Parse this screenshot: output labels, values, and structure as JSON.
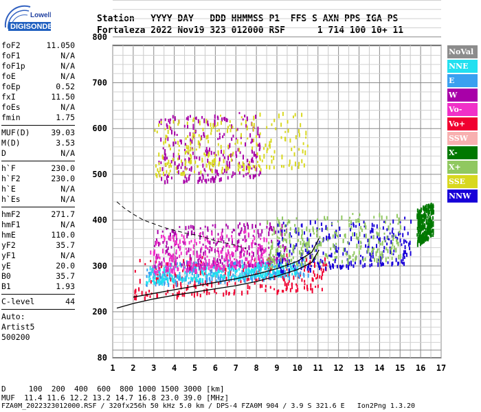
{
  "logo": {
    "line1": "Lowell",
    "line2": "DIGISONDE"
  },
  "header": {
    "line1": "Station   YYYY DAY   DDD HHMMSS P1  FFS S AXN PPS IGA PS",
    "line2": "Fortaleza 2022 Nov19 323 012000 RSF      1 714 100 10+ 11"
  },
  "params": [
    {
      "name": "foF2",
      "value": "11.050"
    },
    {
      "name": "foF1",
      "value": "N/A"
    },
    {
      "name": "foF1p",
      "value": "N/A"
    },
    {
      "name": "foE",
      "value": "N/A"
    },
    {
      "name": "foEp",
      "value": "0.52"
    },
    {
      "name": "fxI",
      "value": "11.50"
    },
    {
      "name": "foEs",
      "value": "N/A"
    },
    {
      "name": "fmin",
      "value": "1.75"
    },
    {
      "sep": true
    },
    {
      "name": "MUF(D)",
      "value": "39.03"
    },
    {
      "name": "M(D)",
      "value": "3.53"
    },
    {
      "name": "D",
      "value": "N/A"
    },
    {
      "sep": true
    },
    {
      "name": "h`F",
      "value": "230.0"
    },
    {
      "name": "h`F2",
      "value": "230.0"
    },
    {
      "name": "h`E",
      "value": "N/A"
    },
    {
      "name": "h`Es",
      "value": "N/A"
    },
    {
      "sep": true
    },
    {
      "name": "hmF2",
      "value": "271.7"
    },
    {
      "name": "hmF1",
      "value": "N/A"
    },
    {
      "name": "hmE",
      "value": "110.0"
    },
    {
      "name": "yF2",
      "value": "35.7"
    },
    {
      "name": "yF1",
      "value": "N/A"
    },
    {
      "name": "yE",
      "value": "20.0"
    },
    {
      "name": "B0",
      "value": "35.7"
    },
    {
      "name": "B1",
      "value": "1.93"
    },
    {
      "sep": true
    },
    {
      "name": "C-level",
      "value": "44"
    },
    {
      "sep": true
    },
    {
      "name": "Auto:",
      "value": ""
    },
    {
      "name": "Artist5",
      "value": ""
    },
    {
      "name": "500200",
      "value": ""
    }
  ],
  "legend": [
    {
      "label": "NoVal",
      "color": "#8c8c8c"
    },
    {
      "label": "NNE",
      "color": "#22e0f0"
    },
    {
      "label": "E",
      "color": "#3aa0f0"
    },
    {
      "label": "W",
      "color": "#a800a8"
    },
    {
      "label": "Vo-",
      "color": "#f030c8"
    },
    {
      "label": "Vo+",
      "color": "#f00030"
    },
    {
      "label": "SSW",
      "color": "#f8b0b0"
    },
    {
      "label": "X-",
      "color": "#007800"
    },
    {
      "label": "X+",
      "color": "#90c860"
    },
    {
      "label": "SSE",
      "color": "#d8d820"
    },
    {
      "label": "NNW",
      "color": "#1800d8"
    }
  ],
  "footer": {
    "line1": "D     100  200  400  600  800 1000 1500 3000 [km]",
    "line2": "MUF  11.4 11.6 12.2 13.2 14.7 16.8 23.0 39.0 [MHz]",
    "line3": "FZA0M_2022323012000.RSF / 320fx256h 50 kHz 5.0 km / DPS-4 FZA0M 904 / 3.9 S 321.6 E   Ion2Png 1.3.20"
  },
  "chart_data": {
    "type": "scatter",
    "xlim": [
      1,
      17
    ],
    "ylim": [
      80,
      900
    ],
    "x_ticks": [
      1,
      2,
      3,
      4,
      5,
      6,
      7,
      8,
      9,
      10,
      11,
      12,
      13,
      14,
      15,
      16,
      17
    ],
    "y_ticks": [
      80,
      200,
      300,
      400,
      500,
      600,
      700,
      800,
      900
    ],
    "grid": true,
    "profile_curve": {
      "x": [
        1.2,
        2,
        3,
        4,
        5,
        6,
        7,
        8,
        9,
        10,
        10.7,
        11.05
      ],
      "y": [
        208,
        218,
        228,
        236,
        243,
        250,
        257,
        266,
        278,
        292,
        308,
        335
      ]
    },
    "virtual_height_trace": {
      "x": [
        2,
        3,
        4,
        5,
        6,
        7,
        8,
        9,
        10,
        10.7,
        11.05
      ],
      "y": [
        232,
        240,
        248,
        256,
        264,
        272,
        282,
        294,
        310,
        330,
        360
      ]
    },
    "dashed_curve": {
      "x": [
        1.2,
        1.6,
        2,
        2.5,
        3,
        3.5,
        4,
        4.5,
        5,
        5.5,
        6,
        6.5,
        7,
        7.5
      ],
      "y": [
        440,
        425,
        413,
        400,
        392,
        384,
        378,
        372,
        368,
        362,
        355,
        350,
        345,
        338
      ]
    },
    "echo_regions": [
      {
        "mode": "Vo+",
        "x": [
          2,
          11.4
        ],
        "y": [
          232,
          330
        ]
      },
      {
        "mode": "E",
        "x": [
          2.6,
          10.5
        ],
        "y": [
          260,
          320
        ]
      },
      {
        "mode": "NNE",
        "x": [
          2.6,
          10.0
        ],
        "y": [
          265,
          310
        ]
      },
      {
        "mode": "W",
        "x": [
          3.0,
          9.5
        ],
        "y": [
          290,
          400
        ]
      },
      {
        "mode": "Vo-",
        "x": [
          2.8,
          8.5
        ],
        "y": [
          285,
          380
        ]
      },
      {
        "mode": "NNW",
        "x": [
          9.0,
          15.5
        ],
        "y": [
          290,
          410
        ]
      },
      {
        "mode": "X+",
        "x": [
          8.5,
          15.0
        ],
        "y": [
          300,
          420
        ]
      },
      {
        "mode": "W",
        "x": [
          3.2,
          8.2
        ],
        "y": [
          480,
          640
        ]
      },
      {
        "mode": "SSE",
        "x": [
          3.0,
          10.5
        ],
        "y": [
          500,
          640
        ]
      },
      {
        "mode": "X-",
        "x": [
          15.8,
          16.6
        ],
        "y": [
          350,
          440
        ]
      }
    ]
  }
}
